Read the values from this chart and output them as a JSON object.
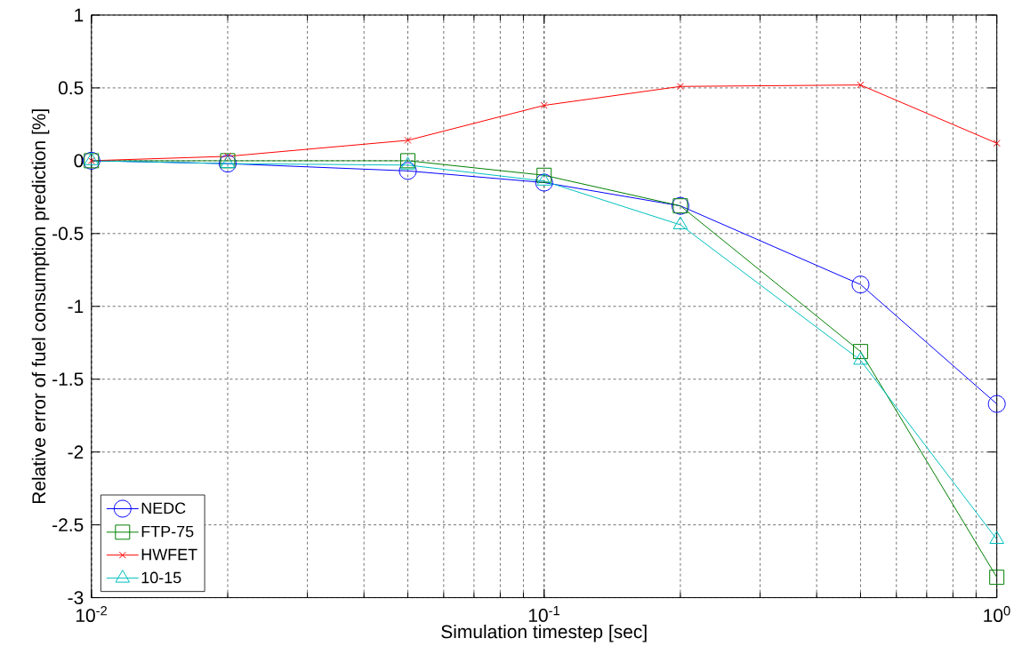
{
  "chart_data": {
    "type": "line",
    "xlabel": "Simulation timestep [sec]",
    "ylabel": "Relative error of fuel consumption prediction [%]",
    "x": [
      0.01,
      0.02,
      0.05,
      0.1,
      0.2,
      0.5,
      1
    ],
    "series": [
      {
        "name": "NEDC",
        "color": "#0000ff",
        "marker": "circle",
        "values": [
          0,
          -0.02,
          -0.07,
          -0.15,
          -0.31,
          -0.85,
          -1.67
        ]
      },
      {
        "name": "FTP-75",
        "color": "#008000",
        "marker": "square",
        "values": [
          0,
          0,
          0,
          -0.1,
          -0.31,
          -1.31,
          -2.86
        ]
      },
      {
        "name": "HWFET",
        "color": "#ff0000",
        "marker": "cross",
        "values": [
          0,
          0.03,
          0.14,
          0.38,
          0.51,
          0.52,
          0.12
        ]
      },
      {
        "name": "10-15",
        "color": "#00bfbf",
        "marker": "triangle",
        "values": [
          0,
          -0.02,
          -0.03,
          -0.14,
          -0.44,
          -1.37,
          -2.6
        ]
      }
    ],
    "log": "x",
    "xlim": [
      0.01,
      1
    ],
    "xticks": [
      {
        "value": 0.01,
        "label": "10$^{-2}$"
      },
      {
        "value": 0.1,
        "label": "10$^{-1}$"
      },
      {
        "value": 1,
        "label": "10$^{0}$"
      }
    ],
    "ylim": [
      -3,
      1
    ],
    "yticks": [
      -3,
      -2.5,
      -2,
      -1.5,
      -1,
      -0.5,
      0,
      0.5,
      1
    ],
    "grid": true,
    "legend": "bottom left",
    "line_style": "solid"
  }
}
